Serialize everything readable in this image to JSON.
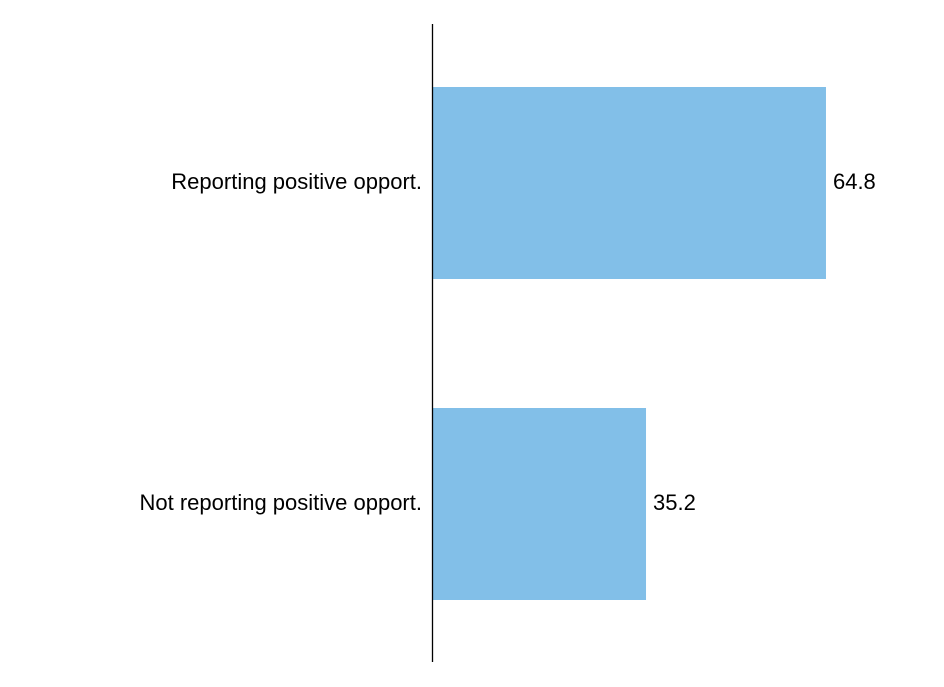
{
  "chart_data": {
    "type": "bar",
    "orientation": "horizontal",
    "title": "",
    "xlabel": "",
    "ylabel": "",
    "categories": [
      "Reporting positive opport.",
      "Not reporting positive opport."
    ],
    "values": [
      64.8,
      35.2
    ],
    "value_labels": [
      "64.8",
      "35.2"
    ],
    "xlim": [
      0,
      100
    ],
    "grid": false,
    "legend": "none",
    "colors": {
      "bar": "#82bfe8",
      "axis": "#000000",
      "text": "#000000"
    }
  }
}
